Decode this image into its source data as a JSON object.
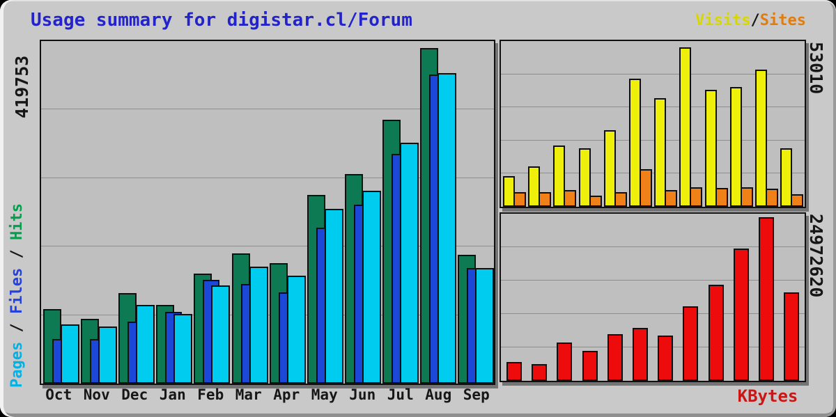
{
  "title": "Usage summary for digistar.cl/Forum",
  "legend": {
    "visits_label": "Visits",
    "separator": "/",
    "sites_label": "Sites"
  },
  "axis": {
    "main_max": "419753",
    "visits_max": "53010",
    "kbytes_max": "24972620",
    "series_pages": "Pages",
    "series_files": "Files",
    "series_hits": "Hits",
    "series_separator": " / ",
    "kbytes_label": "KBytes"
  },
  "months": [
    "Oct",
    "Nov",
    "Dec",
    "Jan",
    "Feb",
    "Mar",
    "Apr",
    "May",
    "Jun",
    "Jul",
    "Aug",
    "Sep"
  ],
  "colors": {
    "title_blue": "#2323cb",
    "hits_green": "#0e7a54",
    "files_blue": "#1c48d8",
    "pages_cyan": "#00ccf0",
    "visits_yellow": "#efef0c",
    "sites_orange": "#f08018",
    "kbytes_red": "#ee0b0b",
    "panel_gray": "#c9c9c9",
    "chart_gray": "#bfbfbf"
  },
  "chart_data": [
    {
      "type": "bar",
      "title": "Pages / Files / Hits by month",
      "categories": [
        "Oct",
        "Nov",
        "Dec",
        "Jan",
        "Feb",
        "Mar",
        "Apr",
        "May",
        "Jun",
        "Jul",
        "Aug",
        "Sep"
      ],
      "ylim": [
        0,
        419753
      ],
      "grid": true,
      "legend_position": "left-axis-vertical",
      "series": [
        {
          "name": "Hits",
          "color": "#0e7a54",
          "values": [
            93500,
            81400,
            113400,
            98700,
            137600,
            162700,
            150600,
            236300,
            262200,
            329800,
            419753,
            161000
          ]
        },
        {
          "name": "Files",
          "color": "#1c48d8",
          "values": [
            55400,
            55400,
            77900,
            90000,
            129800,
            124600,
            114200,
            194700,
            224200,
            287300,
            387000,
            144500
          ]
        },
        {
          "name": "Pages",
          "color": "#00ccf0",
          "values": [
            74400,
            71000,
            98700,
            87400,
            122900,
            146300,
            135000,
            219000,
            241500,
            301200,
            388600,
            144500
          ]
        }
      ]
    },
    {
      "type": "bar",
      "title": "Visits / Sites by month",
      "categories": [
        "Oct",
        "Nov",
        "Dec",
        "Jan",
        "Feb",
        "Mar",
        "Apr",
        "May",
        "Jun",
        "Jul",
        "Aug",
        "Sep"
      ],
      "ylim": [
        0,
        53010
      ],
      "grid": true,
      "legend_position": "top-right",
      "series": [
        {
          "name": "Visits",
          "color": "#efef0c",
          "values": [
            10100,
            13500,
            20400,
            19500,
            25500,
            42700,
            36000,
            53010,
            38800,
            39900,
            45700,
            19500
          ]
        },
        {
          "name": "Sites",
          "color": "#f08018",
          "values": [
            4800,
            4800,
            5500,
            3700,
            4800,
            12600,
            5500,
            6400,
            6200,
            6400,
            6000,
            4100
          ]
        }
      ]
    },
    {
      "type": "bar",
      "title": "KBytes by month",
      "categories": [
        "Oct",
        "Nov",
        "Dec",
        "Jan",
        "Feb",
        "Mar",
        "Apr",
        "May",
        "Jun",
        "Jul",
        "Aug",
        "Sep"
      ],
      "ylim": [
        0,
        24972620
      ],
      "grid": true,
      "legend_position": "bottom-right",
      "series": [
        {
          "name": "KBytes",
          "color": "#ee0b0b",
          "values": [
            2880000,
            2560000,
            5870000,
            4590000,
            7150000,
            8110000,
            6940000,
            11420000,
            14620000,
            20170000,
            24972620,
            13450000
          ]
        }
      ]
    }
  ]
}
